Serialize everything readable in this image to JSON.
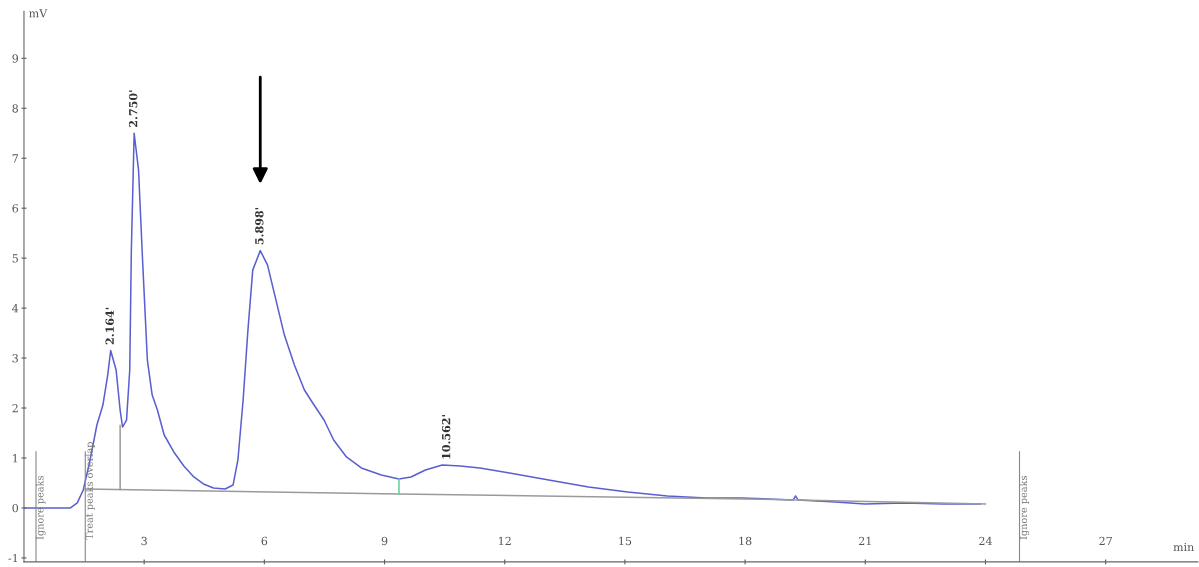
{
  "chart_data": {
    "type": "line",
    "xlabel": "min",
    "ylabel": "mV",
    "xlim": [
      0,
      29.3
    ],
    "ylim": [
      -1.08,
      9.94
    ],
    "xticks": [
      3,
      6,
      9,
      12,
      15,
      18,
      21,
      24,
      27
    ],
    "yticks": [
      -1,
      0,
      1,
      2,
      3,
      4,
      5,
      6,
      7,
      8,
      9
    ],
    "grid": false,
    "legend": false,
    "marker": "none",
    "line_style": "solid",
    "series": [
      {
        "color": "#5a5fd0",
        "x": [
          0,
          1.16,
          1.33,
          1.48,
          1.65,
          1.82,
          1.97,
          2.09,
          2.164,
          2.3,
          2.4,
          2.46,
          2.56,
          2.64,
          2.68,
          2.75,
          2.86,
          2.96,
          3.08,
          3.2,
          3.33,
          3.5,
          3.74,
          3.99,
          4.24,
          4.48,
          4.73,
          5.02,
          5.22,
          5.34,
          5.47,
          5.59,
          5.71,
          5.898,
          6.08,
          6.26,
          6.5,
          6.75,
          7.0,
          7.24,
          7.49,
          7.73,
          8.05,
          8.42,
          8.92,
          9.36,
          9.66,
          10.02,
          10.44,
          10.89,
          11.38,
          12.12,
          13.1,
          14.09,
          15.07,
          16.06,
          17.04,
          17.9,
          19.2,
          19.26,
          19.32,
          20.25,
          20.99,
          21.97,
          22.95,
          23.87
        ],
        "values": [
          0,
          0,
          0.1,
          0.36,
          0.96,
          1.66,
          2.06,
          2.66,
          3.15,
          2.76,
          1.96,
          1.62,
          1.76,
          2.76,
          5.16,
          7.5,
          6.76,
          4.96,
          2.96,
          2.26,
          1.96,
          1.46,
          1.12,
          0.84,
          0.62,
          0.48,
          0.4,
          0.38,
          0.46,
          0.96,
          2.16,
          3.56,
          4.76,
          5.15,
          4.86,
          4.26,
          3.46,
          2.86,
          2.36,
          2.06,
          1.76,
          1.36,
          1.02,
          0.8,
          0.66,
          0.58,
          0.62,
          0.76,
          0.86,
          0.84,
          0.8,
          0.7,
          0.56,
          0.42,
          0.32,
          0.24,
          0.2,
          0.2,
          0.16,
          0.24,
          0.16,
          0.12,
          0.08,
          0.1,
          0.08,
          0.08
        ]
      },
      {
        "color": "#9a9a9a",
        "x": [
          1.53,
          9.36,
          18,
          24
        ],
        "values": [
          0.38,
          0.28,
          0.18,
          0.08
        ]
      },
      {
        "color": "#9a9a9a",
        "x": [
          2.4,
          2.4
        ],
        "values": [
          0.37,
          1.65
        ]
      },
      {
        "color": "#66cc99",
        "x": [
          9.36,
          9.36
        ],
        "values": [
          0.28,
          0.58
        ]
      }
    ],
    "ref_lines": [
      {
        "axis": "x",
        "value": 0.3,
        "label": "Ignore peaks",
        "color": "#888888"
      },
      {
        "axis": "x",
        "value": 1.53,
        "label": "Treat peaks overlap",
        "color": "#888888"
      },
      {
        "axis": "x",
        "value": 24.85,
        "label": "Ignore peaks",
        "color": "#888888"
      }
    ],
    "annotations": [
      {
        "text": "2.164'",
        "x": 2.164,
        "y": 3.15
      },
      {
        "text": "2.750'",
        "x": 2.75,
        "y": 7.5
      },
      {
        "text": "5.898'",
        "x": 5.898,
        "y": 5.15
      },
      {
        "text": "10.562'",
        "x": 10.562,
        "y": 0.85
      }
    ]
  }
}
